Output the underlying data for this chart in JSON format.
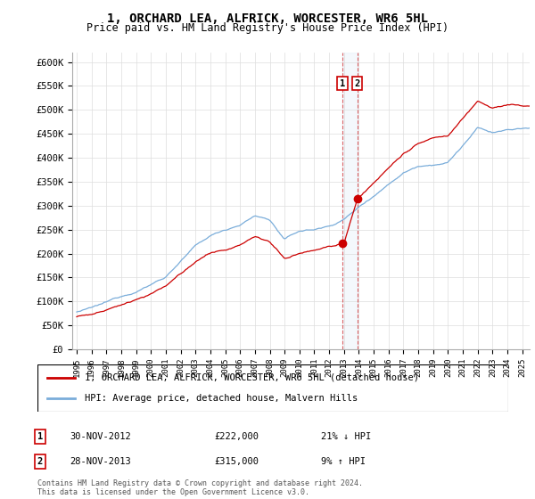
{
  "title": "1, ORCHARD LEA, ALFRICK, WORCESTER, WR6 5HL",
  "subtitle": "Price paid vs. HM Land Registry's House Price Index (HPI)",
  "legend_line1": "1, ORCHARD LEA, ALFRICK, WORCESTER, WR6 5HL (detached house)",
  "legend_line2": "HPI: Average price, detached house, Malvern Hills",
  "transactions": [
    {
      "label": "1",
      "date": "30-NOV-2012",
      "price": "£222,000",
      "pct": "21% ↓ HPI"
    },
    {
      "label": "2",
      "date": "28-NOV-2013",
      "price": "£315,000",
      "pct": "9% ↑ HPI"
    }
  ],
  "footnote": "Contains HM Land Registry data © Crown copyright and database right 2024.\nThis data is licensed under the Open Government Licence v3.0.",
  "hpi_color": "#7aadda",
  "price_color": "#cc0000",
  "ylim": [
    0,
    620000
  ],
  "yticks": [
    0,
    50000,
    100000,
    150000,
    200000,
    250000,
    300000,
    350000,
    400000,
    450000,
    500000,
    550000,
    600000
  ],
  "ytick_labels": [
    "£0",
    "£50K",
    "£100K",
    "£150K",
    "£200K",
    "£250K",
    "£300K",
    "£350K",
    "£400K",
    "£450K",
    "£500K",
    "£550K",
    "£600K"
  ],
  "start_year": 1995,
  "end_year": 2025,
  "t1_year": 2012.917,
  "t2_year": 2013.917,
  "t1_price": 222000,
  "t2_price": 315000
}
